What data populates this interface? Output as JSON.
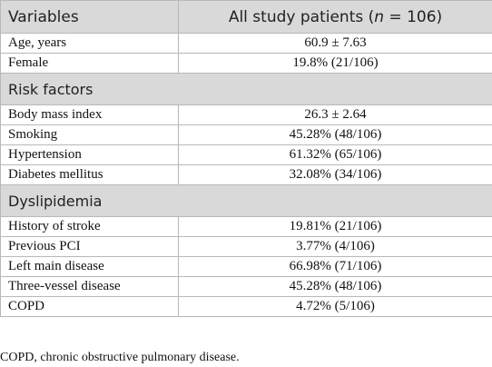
{
  "header": {
    "col1": "Variables",
    "col2_prefix": "All study patients (",
    "col2_italic": "n",
    "col2_suffix": " = 106)"
  },
  "rows_group1": [
    {
      "label": "Age, years",
      "value": "60.9 ± 7.63"
    },
    {
      "label": "Female",
      "value": "19.8% (21/106)"
    }
  ],
  "section_risk": "Risk factors",
  "rows_group2": [
    {
      "label": "Body mass index",
      "value": "26.3 ± 2.64"
    },
    {
      "label": "Smoking",
      "value": "45.28% (48/106)"
    },
    {
      "label": "Hypertension",
      "value": "61.32% (65/106)"
    },
    {
      "label": "Diabetes mellitus",
      "value": "32.08% (34/106)"
    }
  ],
  "section_dyslipidemia": "Dyslipidemia",
  "rows_group3": [
    {
      "label": "History of stroke",
      "value": "19.81% (21/106)"
    },
    {
      "label": "Previous PCI",
      "value": "3.77% (4/106)"
    },
    {
      "label": "Left main disease",
      "value": "66.98% (71/106)"
    },
    {
      "label": "Three-vessel disease",
      "value": "45.28% (48/106)"
    },
    {
      "label": "COPD",
      "value": "4.72% (5/106)"
    }
  ],
  "footnote": "COPD, chronic obstructive pulmonary disease."
}
